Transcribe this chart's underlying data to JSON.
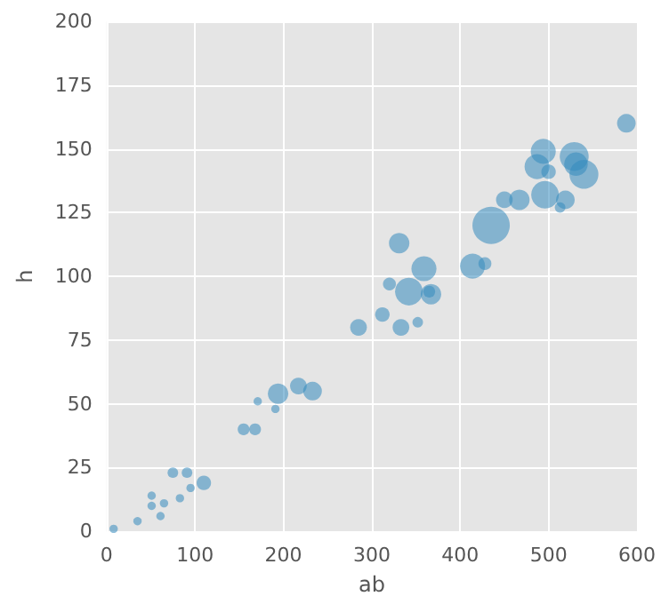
{
  "chart_data": {
    "type": "bubble",
    "xlabel": "ab",
    "ylabel": "h",
    "color": "#348abd",
    "grid": true,
    "xlim": [
      0,
      600
    ],
    "xticks": [
      0,
      100,
      200,
      300,
      400,
      500,
      600
    ],
    "ylim": [
      0,
      200
    ],
    "yticks": [
      0,
      25,
      50,
      75,
      100,
      125,
      150,
      175,
      200
    ],
    "x": [
      8,
      35,
      51,
      51,
      61,
      65,
      83,
      95,
      75,
      91,
      110,
      155,
      168,
      171,
      191,
      194,
      217,
      233,
      285,
      312,
      333,
      352,
      320,
      342,
      367,
      365,
      331,
      359,
      414,
      428,
      435,
      450,
      467,
      494,
      487,
      500,
      496,
      519,
      513,
      529,
      540,
      588,
      531
    ],
    "values": [
      1,
      4,
      14,
      10,
      6,
      11,
      13,
      17,
      23,
      23,
      19,
      40,
      40,
      51,
      48,
      54,
      57,
      55,
      80,
      85,
      80,
      82,
      97,
      94,
      93,
      94,
      113,
      103,
      104,
      105,
      120,
      130,
      130,
      149,
      143,
      141,
      132,
      130,
      127,
      147,
      140,
      160,
      144
    ],
    "sizes": [
      0.05,
      0.05,
      0.05,
      0.05,
      0.05,
      0.05,
      0.05,
      0.05,
      0.08,
      0.08,
      0.15,
      0.1,
      0.1,
      0.05,
      0.05,
      0.3,
      0.2,
      0.25,
      0.2,
      0.15,
      0.2,
      0.08,
      0.12,
      0.55,
      0.3,
      0.1,
      0.3,
      0.45,
      0.45,
      0.12,
      1,
      0.2,
      0.3,
      0.45,
      0.45,
      0.15,
      0.55,
      0.25,
      0.08,
      0.6,
      0.6,
      0.25,
      0.4
    ]
  }
}
